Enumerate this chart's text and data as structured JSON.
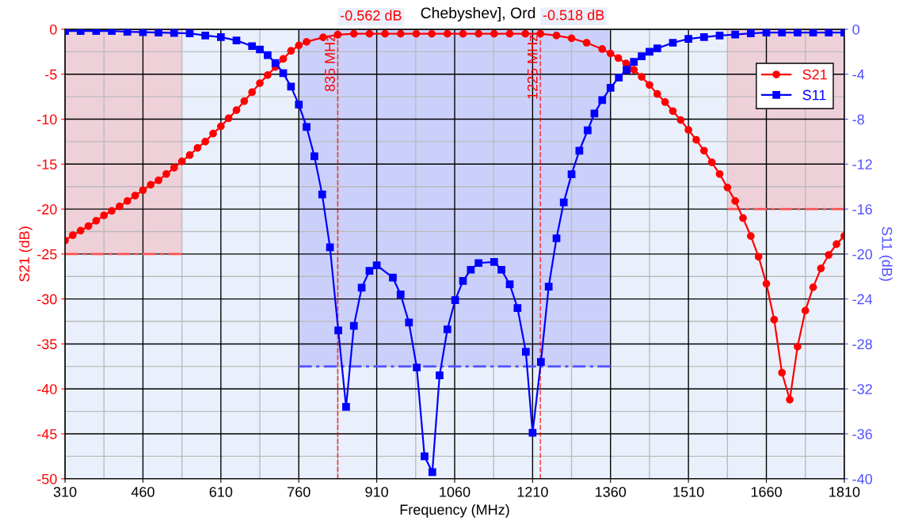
{
  "chart_data": {
    "type": "line",
    "title": "Chebyshev], Ord",
    "xlabel": "Frequency (MHz)",
    "ylabel": "S21 (dB)",
    "y2label": "S11 (dB)",
    "xlim": [
      310,
      1810
    ],
    "xticks": [
      310,
      460,
      610,
      760,
      910,
      1060,
      1210,
      1360,
      1510,
      1660,
      1810
    ],
    "ylim": [
      -50,
      0
    ],
    "yticks": [
      -50,
      -45,
      -40,
      -35,
      -30,
      -25,
      -20,
      -15,
      -10,
      -5,
      0
    ],
    "y2lim": [
      -40,
      0
    ],
    "y2ticks": [
      -40,
      -36,
      -32,
      -28,
      -24,
      -20,
      -16,
      -12,
      -8,
      -4,
      0
    ],
    "grid": true,
    "legend": "top right",
    "series": [
      {
        "name": "S21",
        "color": "#ff0000",
        "marker": "circle",
        "x": [
          310,
          325,
          340,
          355,
          370,
          385,
          400,
          415,
          430,
          445,
          460,
          475,
          490,
          505,
          520,
          535,
          550,
          565,
          580,
          595,
          610,
          625,
          640,
          655,
          670,
          685,
          700,
          715,
          730,
          745,
          760,
          775,
          807,
          835,
          866,
          896,
          926,
          956,
          986,
          1016,
          1046,
          1076,
          1106,
          1136,
          1166,
          1196,
          1225,
          1256,
          1285,
          1314,
          1344,
          1360,
          1375,
          1390,
          1405,
          1420,
          1435,
          1450,
          1465,
          1480,
          1495,
          1510,
          1525,
          1540,
          1555,
          1570,
          1585,
          1600,
          1615,
          1630,
          1645,
          1660,
          1675,
          1690,
          1705,
          1720,
          1735,
          1750,
          1765,
          1780,
          1795,
          1810
        ],
        "values": [
          -23.5,
          -22.9,
          -22.4,
          -21.9,
          -21.3,
          -20.7,
          -20.2,
          -19.7,
          -19.1,
          -18.5,
          -17.9,
          -17.3,
          -16.8,
          -16.1,
          -15.4,
          -14.7,
          -14.0,
          -13.2,
          -12.5,
          -11.6,
          -10.8,
          -9.9,
          -9.0,
          -8.0,
          -7.0,
          -6.0,
          -5.1,
          -4.2,
          -3.3,
          -2.4,
          -1.8,
          -1.4,
          -0.9,
          -0.6,
          -0.5,
          -0.5,
          -0.5,
          -0.5,
          -0.5,
          -0.5,
          -0.5,
          -0.5,
          -0.5,
          -0.5,
          -0.5,
          -0.5,
          -0.5,
          -0.7,
          -1.0,
          -1.5,
          -2.2,
          -2.7,
          -3.2,
          -3.8,
          -4.5,
          -5.3,
          -6.2,
          -7.2,
          -8.1,
          -9.1,
          -10.1,
          -11.2,
          -12.3,
          -13.5,
          -14.8,
          -16.1,
          -17.6,
          -19.1,
          -21.0,
          -23.0,
          -25.3,
          -28.3,
          -32.3,
          -38.2,
          -41.2,
          -35.3,
          -31.3,
          -28.7,
          -26.6,
          -25.1,
          -23.9,
          -23.0
        ]
      },
      {
        "name": "S11",
        "color": "#0000ff",
        "marker": "square",
        "axis": "y2",
        "x": [
          310,
          340,
          370,
          400,
          430,
          460,
          490,
          520,
          550,
          580,
          610,
          640,
          670,
          685,
          700,
          715,
          730,
          745,
          760,
          775,
          790,
          805,
          820,
          836,
          851,
          866,
          881,
          896,
          910,
          941,
          956,
          972,
          987,
          1002,
          1017,
          1031,
          1046,
          1061,
          1076,
          1091,
          1106,
          1136,
          1150,
          1166,
          1181,
          1197,
          1210,
          1226,
          1241,
          1256,
          1270,
          1285,
          1300,
          1316,
          1329,
          1344,
          1360,
          1376,
          1391,
          1405,
          1420,
          1435,
          1450,
          1480,
          1510,
          1540,
          1570,
          1600,
          1630,
          1660,
          1690,
          1720,
          1750,
          1780,
          1810
        ],
        "values": [
          -0.16,
          -0.16,
          -0.16,
          -0.16,
          -0.23,
          -0.26,
          -0.3,
          -0.33,
          -0.37,
          -0.56,
          -0.7,
          -1.0,
          -1.5,
          -1.8,
          -2.3,
          -3.0,
          -3.9,
          -5.1,
          -6.7,
          -8.7,
          -11.3,
          -14.7,
          -19.4,
          -26.8,
          -33.6,
          -26.4,
          -23.0,
          -21.5,
          -21.0,
          -22.1,
          -23.6,
          -26.1,
          -30.1,
          -38.0,
          -39.4,
          -30.8,
          -26.7,
          -24.1,
          -22.4,
          -21.4,
          -20.8,
          -20.7,
          -21.4,
          -22.7,
          -24.8,
          -28.7,
          -35.9,
          -29.6,
          -22.9,
          -18.6,
          -15.4,
          -12.9,
          -10.8,
          -9.0,
          -7.5,
          -6.3,
          -5.2,
          -4.3,
          -3.6,
          -2.9,
          -2.4,
          -2.0,
          -1.7,
          -1.2,
          -0.86,
          -0.7,
          -0.56,
          -0.47,
          -0.36,
          -0.3,
          -0.3,
          -0.3,
          -0.3,
          -0.3,
          -0.3
        ]
      },
      {
        "color": "#ff5050",
        "line_style": "dashdot",
        "marker": "none",
        "x": [
          310,
          535
        ],
        "values": [
          -25,
          -25
        ],
        "lower": [
          -25,
          -25
        ],
        "upper": [
          0,
          0
        ]
      },
      {
        "color": "#ff5050",
        "line_style": "dashdot",
        "marker": "none",
        "x": [
          1585,
          1810
        ],
        "values": [
          -20,
          -20
        ],
        "lower": [
          -20,
          -20
        ],
        "upper": [
          0,
          0
        ]
      },
      {
        "color": "#5050ff",
        "line_style": "dashdot",
        "marker": "none",
        "axis": "y2",
        "x": [
          760,
          1360
        ],
        "values": [
          -30,
          -30
        ],
        "lower": [
          -30,
          -30
        ],
        "upper": [
          0,
          0
        ]
      }
    ],
    "ref_lines": [
      {
        "axis": "x",
        "value": 835,
        "label": "835 MHz",
        "color": "#ff0000",
        "line_style": "dashed"
      },
      {
        "axis": "x",
        "value": 1225,
        "label": "1225 MHz",
        "color": "#ff0000",
        "line_style": "dashed"
      }
    ],
    "annotations": [
      {
        "text": "-0.562 dB",
        "x": 835,
        "y": -0.562
      },
      {
        "text": "-0.518 dB",
        "x": 1225,
        "y": -0.518
      }
    ]
  }
}
